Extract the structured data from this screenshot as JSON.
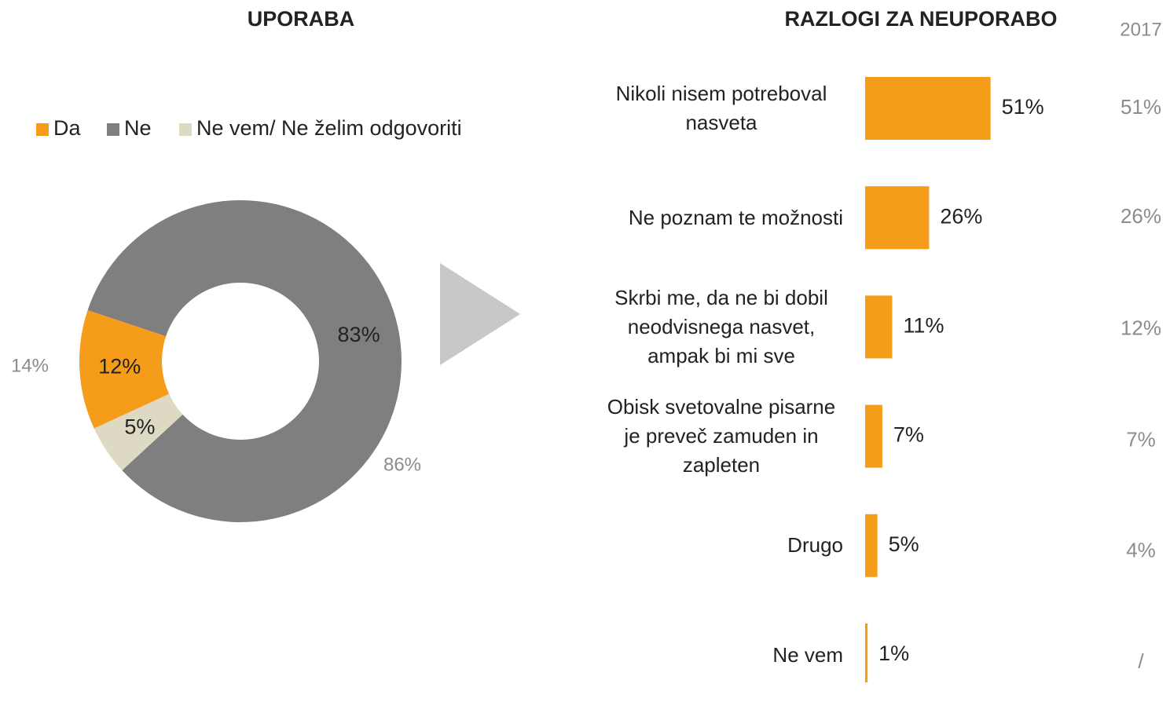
{
  "chart_data": [
    {
      "type": "donut",
      "title": "UPORABA",
      "categories": [
        "Da",
        "Ne",
        "Ne vem/ Ne želim odgovoriti"
      ],
      "values": [
        12,
        83,
        5
      ],
      "value_labels": [
        "12%",
        "83%",
        "5%"
      ],
      "colors": [
        "#f59c1a",
        "#7f7f7f",
        "#ddd9c3"
      ],
      "comparison": {
        "values": [
          14,
          86,
          null
        ],
        "value_labels": [
          "14%",
          "86%",
          null
        ],
        "color": "#8c8c8c"
      },
      "legend": "top"
    },
    {
      "type": "hbar",
      "title": "RAZLOGI ZA NEUPORABO",
      "categories": [
        "Nikoli nisem potreboval nasveta",
        "Ne poznam te možnosti",
        "Skrbi me, da ne bi dobil neodvisnega nasvet, ampak bi mi sve",
        "Obisk svetovalne pisarne je preveč zamuden in zapleten",
        "Drugo",
        "Ne vem"
      ],
      "values": [
        51,
        26,
        11,
        7,
        5,
        1
      ],
      "value_labels": [
        "51%",
        "26%",
        "11%",
        "7%",
        "5%",
        "1%"
      ],
      "color": "#f59c1a",
      "xlim": [
        0,
        100
      ],
      "comparison": {
        "name": "2017",
        "values": [
          51,
          26,
          12,
          7,
          4,
          null
        ],
        "value_labels": [
          "51%",
          "26%",
          "12%",
          "7%",
          "4%",
          "/"
        ],
        "color": "#8c8c8c"
      }
    }
  ]
}
